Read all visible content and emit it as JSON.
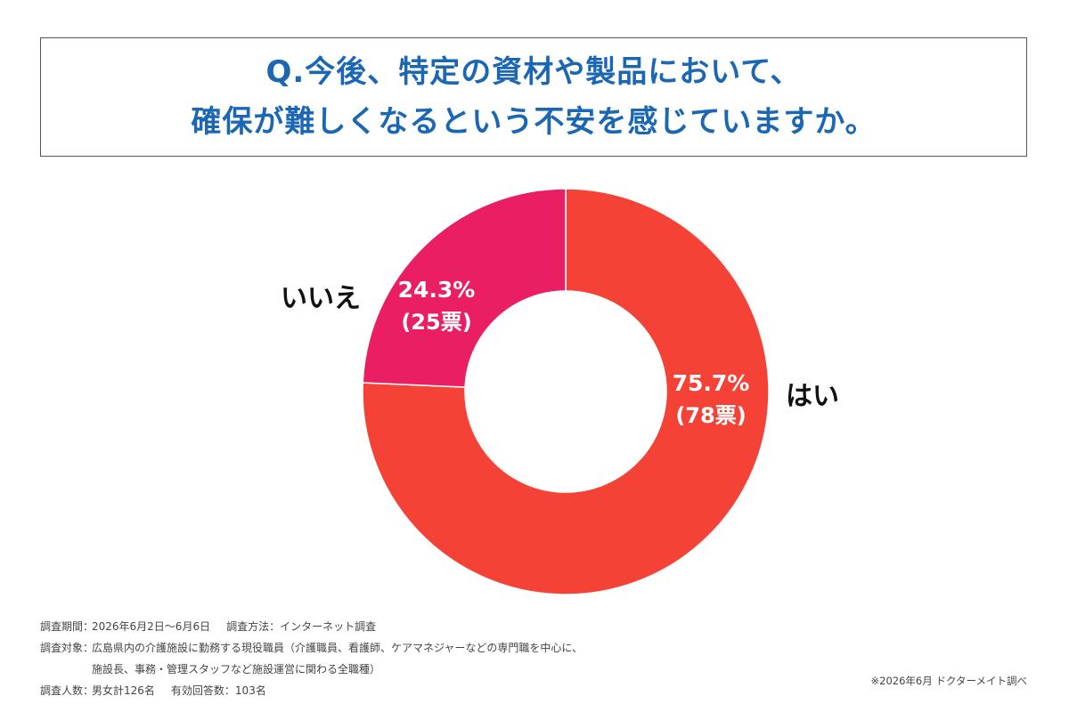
{
  "title": {
    "line1": "Q.今後、特定の資材や製品において、",
    "line2": "確保が難しくなるという不安を感じていますか。"
  },
  "chart_data": {
    "type": "pie",
    "donut": true,
    "slices": [
      {
        "label": "はい",
        "percent": 75.7,
        "votes": 78,
        "percent_text": "75.7%",
        "votes_text": "(78票)",
        "color": "#f44336"
      },
      {
        "label": "いいえ",
        "percent": 24.3,
        "votes": 25,
        "percent_text": "24.3%",
        "votes_text": "(25票)",
        "color": "#e91e63"
      }
    ]
  },
  "footer": {
    "period_label": "調査期間：",
    "period_value": "2026年6月2日〜6月6日",
    "method_label": "調査方法：",
    "method_value": "インターネット調査",
    "target_label": "調査対象：",
    "target_value_line1": "広島県内の介護施設に勤務する現役職員（介護職員、看護師、ケアマネジャーなどの専門職を中心に、",
    "target_value_line2": "施設長、事務・管理スタッフなど施設運営に関わる全職種）",
    "count_label": "調査人数：",
    "count_value": "男女計126名",
    "valid_label": "有効回答数：",
    "valid_value": "103名",
    "source": "※2026年6月 ドクターメイト調べ"
  }
}
